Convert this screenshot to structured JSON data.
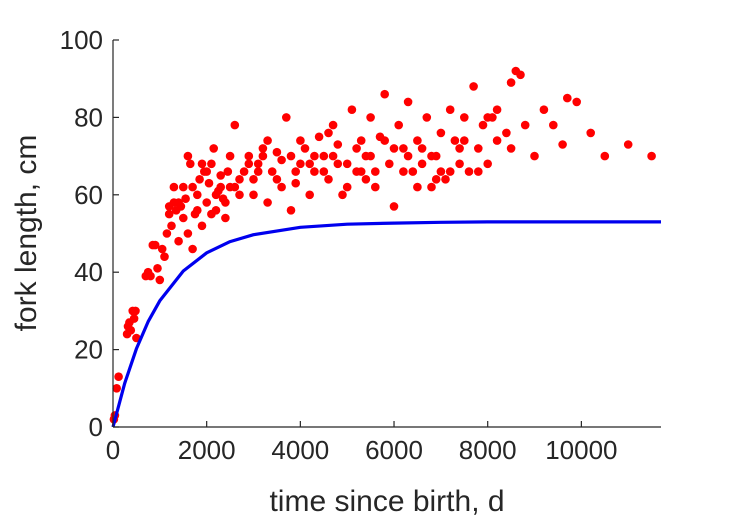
{
  "chart_data": {
    "type": "scatter",
    "xlabel": "time since birth, d",
    "ylabel": "fork length, cm",
    "xlim": [
      0,
      11700
    ],
    "ylim": [
      0,
      100
    ],
    "xticks": [
      0,
      2000,
      4000,
      6000,
      8000,
      10000
    ],
    "yticks": [
      0,
      20,
      40,
      60,
      80,
      100
    ],
    "xtick_labels": [
      "0",
      "2000",
      "4000",
      "6000",
      "8000",
      "10000"
    ],
    "ytick_labels": [
      "0",
      "20",
      "40",
      "60",
      "80",
      "100"
    ],
    "grid": false,
    "legend": "none",
    "colors": {
      "scatter": "#ff0000",
      "curve": "#0000ee",
      "axes": "#262626"
    },
    "series": [
      {
        "type": "scatter",
        "points": [
          [
            20,
            2
          ],
          [
            40,
            3
          ],
          [
            80,
            10
          ],
          [
            120,
            13
          ],
          [
            300,
            24
          ],
          [
            320,
            26
          ],
          [
            350,
            27
          ],
          [
            380,
            25
          ],
          [
            420,
            30
          ],
          [
            450,
            28
          ],
          [
            480,
            30
          ],
          [
            500,
            23
          ],
          [
            700,
            39
          ],
          [
            750,
            40
          ],
          [
            800,
            39
          ],
          [
            850,
            47
          ],
          [
            900,
            47
          ],
          [
            950,
            41
          ],
          [
            1000,
            38
          ],
          [
            1050,
            46
          ],
          [
            1100,
            44
          ],
          [
            1150,
            50
          ],
          [
            1200,
            55
          ],
          [
            1250,
            52
          ],
          [
            1300,
            58
          ],
          [
            1350,
            56
          ],
          [
            1400,
            48
          ],
          [
            1450,
            57
          ],
          [
            1500,
            62
          ],
          [
            1550,
            59
          ],
          [
            1600,
            70
          ],
          [
            1650,
            68
          ],
          [
            1700,
            46
          ],
          [
            1750,
            55
          ],
          [
            1800,
            60
          ],
          [
            1850,
            64
          ],
          [
            1900,
            52
          ],
          [
            1950,
            66
          ],
          [
            2000,
            58
          ],
          [
            2050,
            63
          ],
          [
            2100,
            68
          ],
          [
            2150,
            72
          ],
          [
            2200,
            56
          ],
          [
            2250,
            61
          ],
          [
            2300,
            65
          ],
          [
            2350,
            59
          ],
          [
            2400,
            54
          ],
          [
            2450,
            66
          ],
          [
            2500,
            62
          ],
          [
            2600,
            78
          ],
          [
            2700,
            60
          ],
          [
            2800,
            66
          ],
          [
            2900,
            70
          ],
          [
            3000,
            64
          ],
          [
            3100,
            68
          ],
          [
            3200,
            72
          ],
          [
            3300,
            58
          ],
          [
            3400,
            66
          ],
          [
            3500,
            71
          ],
          [
            3600,
            69
          ],
          [
            3700,
            80
          ],
          [
            3800,
            56
          ],
          [
            3900,
            63
          ],
          [
            4000,
            68
          ],
          [
            4100,
            72
          ],
          [
            4200,
            60
          ],
          [
            4300,
            66
          ],
          [
            4400,
            75
          ],
          [
            4500,
            70
          ],
          [
            4600,
            64
          ],
          [
            4700,
            78
          ],
          [
            4800,
            73
          ],
          [
            4900,
            60
          ],
          [
            5000,
            68
          ],
          [
            5100,
            82
          ],
          [
            5200,
            72
          ],
          [
            5300,
            66
          ],
          [
            5400,
            70
          ],
          [
            5500,
            80
          ],
          [
            5600,
            62
          ],
          [
            5700,
            75
          ],
          [
            5800,
            86
          ],
          [
            5900,
            68
          ],
          [
            6000,
            57
          ],
          [
            6100,
            78
          ],
          [
            6200,
            72
          ],
          [
            6300,
            84
          ],
          [
            6400,
            66
          ],
          [
            6500,
            74
          ],
          [
            6600,
            68
          ],
          [
            6700,
            80
          ],
          [
            6800,
            62
          ],
          [
            6900,
            70
          ],
          [
            7000,
            76
          ],
          [
            7100,
            64
          ],
          [
            7200,
            82
          ],
          [
            7300,
            74
          ],
          [
            7400,
            68
          ],
          [
            7500,
            80
          ],
          [
            7600,
            66
          ],
          [
            7700,
            88
          ],
          [
            7800,
            72
          ],
          [
            7900,
            78
          ],
          [
            8000,
            68
          ],
          [
            8100,
            80
          ],
          [
            8200,
            74
          ],
          [
            8400,
            76
          ],
          [
            8500,
            89
          ],
          [
            8600,
            92
          ],
          [
            8700,
            91
          ],
          [
            8800,
            78
          ],
          [
            9000,
            70
          ],
          [
            9200,
            82
          ],
          [
            9400,
            78
          ],
          [
            9600,
            73
          ],
          [
            9700,
            85
          ],
          [
            9900,
            84
          ],
          [
            10200,
            76
          ],
          [
            10500,
            70
          ],
          [
            11000,
            73
          ],
          [
            11500,
            70
          ],
          [
            1300,
            62
          ],
          [
            1800,
            56
          ],
          [
            2100,
            55
          ],
          [
            2400,
            58
          ],
          [
            2700,
            64
          ],
          [
            3000,
            60
          ],
          [
            3300,
            74
          ],
          [
            3600,
            62
          ],
          [
            4000,
            74
          ],
          [
            4300,
            70
          ],
          [
            4600,
            76
          ],
          [
            5000,
            62
          ],
          [
            5400,
            64
          ],
          [
            5800,
            74
          ],
          [
            6200,
            66
          ],
          [
            6600,
            72
          ],
          [
            7000,
            66
          ],
          [
            7400,
            72
          ],
          [
            7800,
            66
          ],
          [
            8200,
            82
          ],
          [
            1500,
            54
          ],
          [
            2000,
            66
          ],
          [
            2500,
            70
          ],
          [
            3500,
            64
          ],
          [
            4500,
            66
          ],
          [
            5500,
            70
          ],
          [
            6500,
            62
          ],
          [
            7500,
            74
          ],
          [
            8500,
            72
          ],
          [
            1700,
            62
          ],
          [
            2200,
            60
          ],
          [
            2900,
            68
          ],
          [
            3800,
            70
          ],
          [
            4800,
            68
          ],
          [
            5600,
            66
          ],
          [
            6800,
            70
          ],
          [
            1400,
            58
          ],
          [
            1900,
            68
          ],
          [
            2600,
            62
          ],
          [
            3100,
            66
          ],
          [
            3900,
            66
          ],
          [
            4700,
            70
          ],
          [
            5300,
            74
          ],
          [
            6300,
            70
          ],
          [
            7200,
            66
          ],
          [
            1200,
            57
          ],
          [
            1600,
            50
          ],
          [
            2300,
            62
          ],
          [
            3200,
            70
          ],
          [
            4200,
            68
          ],
          [
            5200,
            66
          ],
          [
            6000,
            72
          ],
          [
            6900,
            64
          ],
          [
            8000,
            80
          ]
        ]
      },
      {
        "type": "line",
        "curve": "von Bertalanffy",
        "x": [
          0,
          250,
          500,
          750,
          1000,
          1500,
          2000,
          2500,
          3000,
          4000,
          5000,
          6000,
          7000,
          8000,
          9000,
          10000,
          11700
        ],
        "y": [
          0,
          11.3,
          20.2,
          27.2,
          32.6,
          40.3,
          45.0,
          47.9,
          49.7,
          51.6,
          52.4,
          52.7,
          52.9,
          53.0,
          53.0,
          53.0,
          53.0
        ]
      }
    ]
  }
}
